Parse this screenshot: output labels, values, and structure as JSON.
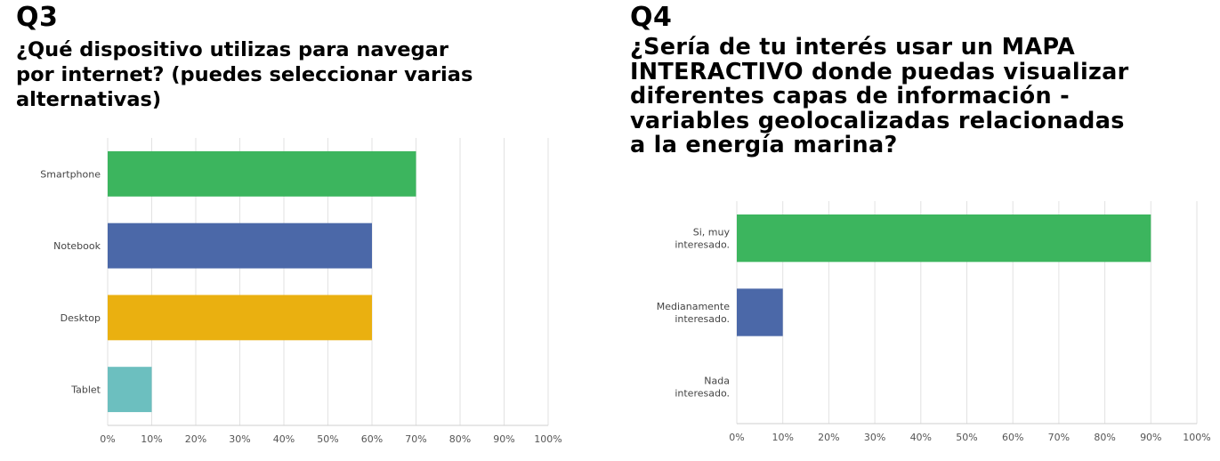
{
  "charts": [
    {
      "number": "Q3",
      "title_lines": [
        "¿Qué dispositivo utilizas para navegar",
        "por internet? (puedes seleccionar varias",
        "alternativas)"
      ]
    },
    {
      "number": "Q4",
      "title_lines": [
        "¿Sería de tu interés usar un MAPA",
        "INTERACTIVO donde puedas visualizar",
        "diferentes capas de información -",
        "variables geolocalizadas relacionadas",
        "a la energía marina?"
      ]
    }
  ],
  "chart_data": [
    {
      "type": "bar",
      "orientation": "horizontal",
      "title": "¿Qué dispositivo utilizas para navegar por internet? (puedes seleccionar varias alternativas)",
      "categories": [
        "Smartphone",
        "Notebook",
        "Desktop",
        "Tablet"
      ],
      "values": [
        70,
        60,
        60,
        10
      ],
      "colors": [
        "#3cb55e",
        "#4b68a8",
        "#eab010",
        "#6cbfbf"
      ],
      "xlim": [
        0,
        100
      ],
      "x_ticks": [
        "0%",
        "10%",
        "20%",
        "30%",
        "40%",
        "50%",
        "60%",
        "70%",
        "80%",
        "90%",
        "100%"
      ],
      "grid": true
    },
    {
      "type": "bar",
      "orientation": "horizontal",
      "title": "¿Sería de tu interés usar un MAPA INTERACTIVO donde puedas visualizar diferentes capas de información - variables geolocalizadas relacionadas a la energía marina?",
      "categories": [
        [
          "Si, muy",
          "interesado."
        ],
        [
          "Medianamente",
          "interesado."
        ],
        [
          "Nada",
          "interesado."
        ]
      ],
      "values": [
        90,
        10,
        0
      ],
      "colors": [
        "#3cb55e",
        "#4b68a8",
        "#eab010"
      ],
      "xlim": [
        0,
        100
      ],
      "x_ticks": [
        "0%",
        "10%",
        "20%",
        "30%",
        "40%",
        "50%",
        "60%",
        "70%",
        "80%",
        "90%",
        "100%"
      ],
      "grid": true
    }
  ]
}
